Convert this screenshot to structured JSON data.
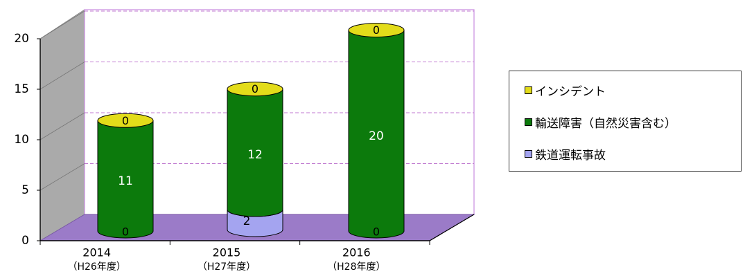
{
  "chart_data": {
    "type": "bar",
    "style": "3d-stacked-cylinder",
    "categories": [
      {
        "year": "2014",
        "era": "（H26年度）"
      },
      {
        "year": "2015",
        "era": "（H27年度）"
      },
      {
        "year": "2016",
        "era": "（H28年度）"
      }
    ],
    "series": [
      {
        "name": "鉄道運転事故",
        "color": "#a4a4f0",
        "values": [
          0,
          2,
          0
        ],
        "labels": [
          "0",
          "2",
          "0"
        ]
      },
      {
        "name": "輸送障害（自然災害含む）",
        "color": "#0c7a0c",
        "values": [
          11,
          12,
          20
        ],
        "labels": [
          "11",
          "12",
          "20"
        ]
      },
      {
        "name": "インシデント",
        "color": "#e3dc1a",
        "values": [
          0,
          0,
          0
        ],
        "labels": [
          "0",
          "0",
          "0"
        ]
      }
    ],
    "ylim": [
      0,
      20
    ],
    "yticks": [
      "0",
      "5",
      "10",
      "15",
      "20"
    ],
    "grid": true,
    "legend_position": "right",
    "colors": {
      "wall": "#ffffff",
      "side_wall": "#aaaaaa",
      "floor": "#9b7bc8",
      "gridline": "#c07ad0",
      "frame": "#c88be0"
    }
  },
  "legend": {
    "items": [
      {
        "label": "インシデント",
        "color": "#e3dc1a"
      },
      {
        "label": "輸送障害（自然災害含む）",
        "color": "#0c7a0c"
      },
      {
        "label": "鉄道運転事故",
        "color": "#a4a4f0"
      }
    ]
  }
}
